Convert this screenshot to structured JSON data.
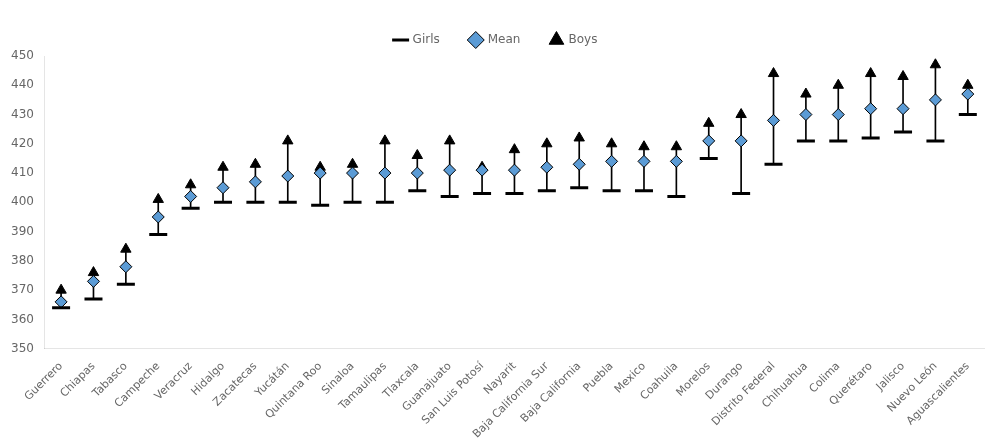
{
  "chart_data": {
    "type": "dumbbell",
    "categories": [
      "Guerrero",
      "Chiapas",
      "Tabasco",
      "Campeche",
      "Veracruz",
      "Hidalgo",
      "Zacatecas",
      "Yucátán",
      "Quintana Roo",
      "Sinaloa",
      "Tamaulipas",
      "Tlaxcala",
      "Guanajuato",
      "San Luis Potosí",
      "Nayarit",
      "Baja California Sur",
      "Baja California",
      "Puebla",
      "Mexico",
      "Coahuila",
      "Morelos",
      "Durango",
      "Distrito Federal",
      "Chihuahua",
      "Colima",
      "Querétaro",
      "Jalisco",
      "Nuevo León",
      "Aguascalientes"
    ],
    "series": [
      {
        "name": "Girls",
        "color": "#000000",
        "marker": "dash",
        "values": [
          364,
          367,
          372,
          389,
          398,
          400,
          400,
          400,
          399,
          400,
          400,
          404,
          402,
          403,
          403,
          404,
          405,
          404,
          404,
          402,
          415,
          403,
          413,
          421,
          421,
          422,
          424,
          421,
          430
        ]
      },
      {
        "name": "Mean",
        "color": "#5b9bd5",
        "marker": "diamond",
        "values": [
          366,
          373,
          378,
          395,
          402,
          405,
          407,
          409,
          410,
          410,
          410,
          410,
          411,
          411,
          411,
          412,
          413,
          414,
          414,
          414,
          421,
          421,
          428,
          430,
          430,
          432,
          432,
          435,
          437
        ]
      },
      {
        "name": "Boys",
        "color": "#000000",
        "marker": "triangle",
        "values": [
          370,
          376,
          384,
          401,
          406,
          412,
          413,
          421,
          412,
          413,
          421,
          416,
          421,
          412,
          418,
          420,
          422,
          420,
          419,
          419,
          427,
          430,
          444,
          437,
          440,
          444,
          443,
          447,
          440
        ]
      }
    ],
    "ylim": [
      350,
      450
    ],
    "yticks": [
      350,
      360,
      370,
      380,
      390,
      400,
      410,
      420,
      430,
      440,
      450
    ],
    "grid": false,
    "legend": "top"
  }
}
